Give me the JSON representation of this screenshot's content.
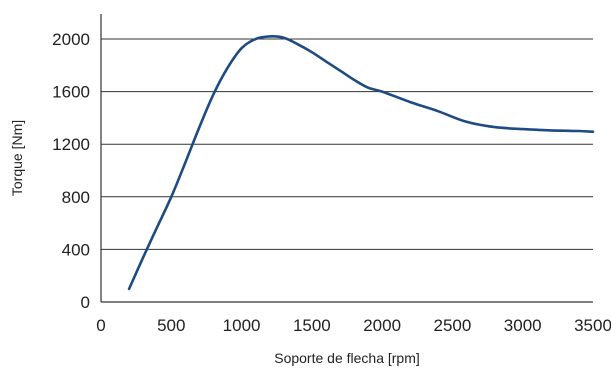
{
  "chart_data": {
    "type": "line",
    "title": "",
    "xlabel": "Soporte de flecha [rpm]",
    "ylabel": "Torque [Nm]",
    "xlim": [
      0,
      3500
    ],
    "ylim": [
      0,
      2000
    ],
    "x_ticks": [
      0,
      500,
      1000,
      1500,
      2000,
      2500,
      3000,
      3500
    ],
    "y_ticks": [
      0,
      400,
      800,
      1200,
      1600,
      2000
    ],
    "grid": "horizontal",
    "legend": "none",
    "series": [
      {
        "color": "#1d4b82",
        "points": [
          [
            200,
            100
          ],
          [
            300,
            340
          ],
          [
            400,
            570
          ],
          [
            500,
            800
          ],
          [
            600,
            1060
          ],
          [
            700,
            1330
          ],
          [
            800,
            1580
          ],
          [
            900,
            1780
          ],
          [
            1000,
            1930
          ],
          [
            1100,
            2000
          ],
          [
            1200,
            2020
          ],
          [
            1300,
            2010
          ],
          [
            1400,
            1960
          ],
          [
            1500,
            1900
          ],
          [
            1600,
            1830
          ],
          [
            1700,
            1760
          ],
          [
            1800,
            1690
          ],
          [
            1900,
            1630
          ],
          [
            2000,
            1600
          ],
          [
            2200,
            1520
          ],
          [
            2400,
            1450
          ],
          [
            2600,
            1370
          ],
          [
            2800,
            1330
          ],
          [
            3000,
            1315
          ],
          [
            3200,
            1305
          ],
          [
            3400,
            1300
          ],
          [
            3500,
            1295
          ]
        ]
      }
    ]
  }
}
